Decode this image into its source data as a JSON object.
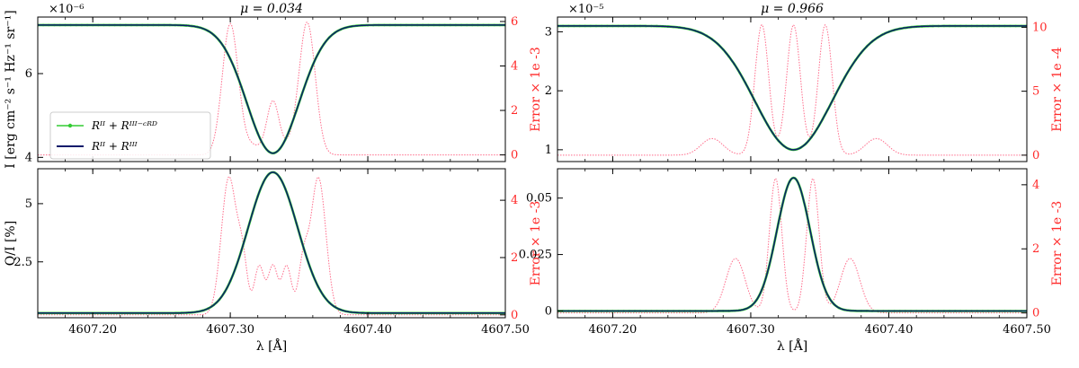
{
  "chart_data": [
    {
      "id": "p1",
      "type": "line",
      "title": "μ = 0.034",
      "ylabel": "I  [erg cm⁻² s⁻¹ Hz⁻¹ sr⁻¹]",
      "y_multiplier": "×10⁻⁶",
      "right_ylabel": "Error  ×  1e -3",
      "xlim": [
        4607.16,
        4607.5
      ],
      "ylim": [
        3.9,
        7.35
      ],
      "right_ylim": [
        -0.3,
        6.2
      ],
      "xticks": [],
      "yticks": [
        {
          "v": 4,
          "label": "4"
        },
        {
          "v": 6,
          "label": "6"
        }
      ],
      "right_yticks": [
        {
          "v": 0,
          "label": "0"
        },
        {
          "v": 2,
          "label": "2"
        },
        {
          "v": 4,
          "label": "4"
        },
        {
          "v": 6,
          "label": "6"
        }
      ],
      "profile": {
        "kind": "absorption",
        "continuum": 7.16,
        "depth": 3.06,
        "center": 4607.331,
        "width": 0.019
      },
      "error": {
        "base": 0.0,
        "bumps": [
          [
            4607.3,
            5.9,
            0.0058
          ],
          [
            4607.356,
            5.9,
            0.0058
          ],
          [
            4607.331,
            2.4,
            0.0045
          ],
          [
            4607.316,
            0.4,
            0.006
          ],
          [
            4607.345,
            0.4,
            0.006
          ]
        ]
      },
      "series": [
        {
          "name": "Rᴵᴵ + Rᴵᴵᴵ⁻ᶜᴿᴰ",
          "color": "#33cc33"
        },
        {
          "name": "Rᴵᴵ + Rᴵᴵᴵ",
          "color": "#0d1b6b"
        }
      ],
      "legend": "center-left"
    },
    {
      "id": "p2",
      "type": "line",
      "title": "μ = 0.966",
      "ylabel": "",
      "y_multiplier": "×10⁻⁵",
      "right_ylabel": "Error  ×  1e -4",
      "xlim": [
        4607.16,
        4607.5
      ],
      "ylim": [
        0.8,
        3.25
      ],
      "right_ylim": [
        -0.5,
        10.8
      ],
      "xticks": [],
      "yticks": [
        {
          "v": 1,
          "label": "1"
        },
        {
          "v": 2,
          "label": "2"
        },
        {
          "v": 3,
          "label": "3"
        }
      ],
      "right_yticks": [
        {
          "v": 0,
          "label": "0"
        },
        {
          "v": 5,
          "label": "5"
        },
        {
          "v": 10,
          "label": "10"
        }
      ],
      "profile": {
        "kind": "absorption",
        "continuum": 3.1,
        "depth": 2.1,
        "center": 4607.331,
        "width": 0.028
      },
      "error": {
        "base": 0.0,
        "bumps": [
          [
            4607.308,
            10.2,
            0.005
          ],
          [
            4607.331,
            10.2,
            0.005
          ],
          [
            4607.354,
            10.2,
            0.005
          ],
          [
            4607.272,
            1.3,
            0.008
          ],
          [
            4607.391,
            1.3,
            0.008
          ]
        ]
      },
      "series": [
        {
          "name": "Rᴵᴵ + Rᴵᴵᴵ⁻ᶜᴿᴰ",
          "color": "#33cc33"
        },
        {
          "name": "Rᴵᴵ + Rᴵᴵᴵ",
          "color": "#0d1b6b"
        }
      ]
    },
    {
      "id": "p3",
      "type": "line",
      "title": "",
      "ylabel": "Q/I [%]",
      "xlabel": "λ [Å]",
      "right_ylabel": "Error  ×  1e -3",
      "xlim": [
        4607.16,
        4607.5
      ],
      "ylim": [
        0.1,
        6.5
      ],
      "right_ylim": [
        -0.1,
        5.1
      ],
      "xticks": [
        {
          "v": 4607.2,
          "label": "4607.20"
        },
        {
          "v": 4607.3,
          "label": "4607.30"
        },
        {
          "v": 4607.4,
          "label": "4607.40"
        },
        {
          "v": 4607.5,
          "label": "4607.50"
        }
      ],
      "yticks": [
        {
          "v": 2.5,
          "label": "2.5"
        },
        {
          "v": 5,
          "label": "5"
        }
      ],
      "right_yticks": [
        {
          "v": 0,
          "label": "0"
        },
        {
          "v": 2,
          "label": "2"
        },
        {
          "v": 4,
          "label": "4"
        }
      ],
      "profile": {
        "kind": "emission",
        "base": 0.3,
        "peak": 6.35,
        "center": 4607.331,
        "width": 0.018
      },
      "error": {
        "base": 0.0,
        "bumps": [
          [
            4607.299,
            4.8,
            0.0055
          ],
          [
            4607.364,
            4.8,
            0.0055
          ],
          [
            4607.309,
            1.7,
            0.0035
          ],
          [
            4607.321,
            1.7,
            0.0035
          ],
          [
            4607.331,
            1.7,
            0.0035
          ],
          [
            4607.341,
            1.7,
            0.0035
          ],
          [
            4607.353,
            1.7,
            0.0035
          ]
        ]
      },
      "series": [
        {
          "name": "Rᴵᴵ + Rᴵᴵᴵ⁻ᶜᴿᴰ",
          "color": "#33cc33"
        },
        {
          "name": "Rᴵᴵ + Rᴵᴵᴵ",
          "color": "#0d1b6b"
        }
      ]
    },
    {
      "id": "p4",
      "type": "line",
      "title": "",
      "ylabel": "",
      "xlabel": "λ [Å]",
      "right_ylabel": "Error  ×  1e -3",
      "xlim": [
        4607.16,
        4607.5
      ],
      "ylim": [
        -0.003,
        0.063
      ],
      "right_ylim": [
        -0.15,
        4.5
      ],
      "xticks": [
        {
          "v": 4607.2,
          "label": "4607.20"
        },
        {
          "v": 4607.3,
          "label": "4607.30"
        },
        {
          "v": 4607.4,
          "label": "4607.40"
        },
        {
          "v": 4607.5,
          "label": "4607.50"
        }
      ],
      "yticks": [
        {
          "v": 0,
          "label": "0"
        },
        {
          "v": 0.025,
          "label": "0.025"
        },
        {
          "v": 0.05,
          "label": "0.05"
        }
      ],
      "right_yticks": [
        {
          "v": 0,
          "label": "0"
        },
        {
          "v": 2,
          "label": "2"
        },
        {
          "v": 4,
          "label": "4"
        }
      ],
      "profile": {
        "kind": "emission",
        "base": 0.0,
        "peak": 0.059,
        "center": 4607.331,
        "width": 0.012
      },
      "error": {
        "base": 0.0,
        "bumps": [
          [
            4607.318,
            4.2,
            0.0045
          ],
          [
            4607.345,
            4.2,
            0.0045
          ],
          [
            4607.289,
            1.7,
            0.007
          ],
          [
            4607.372,
            1.7,
            0.007
          ]
        ]
      },
      "series": [
        {
          "name": "Rᴵᴵ + Rᴵᴵᴵ⁻ᶜᴿᴰ",
          "color": "#33cc33"
        },
        {
          "name": "Rᴵᴵ + Rᴵᴵᴵ",
          "color": "#0d1b6b"
        }
      ]
    }
  ],
  "colors": {
    "error": "#ff6b8a",
    "right_axis": "#ff2a2a"
  }
}
